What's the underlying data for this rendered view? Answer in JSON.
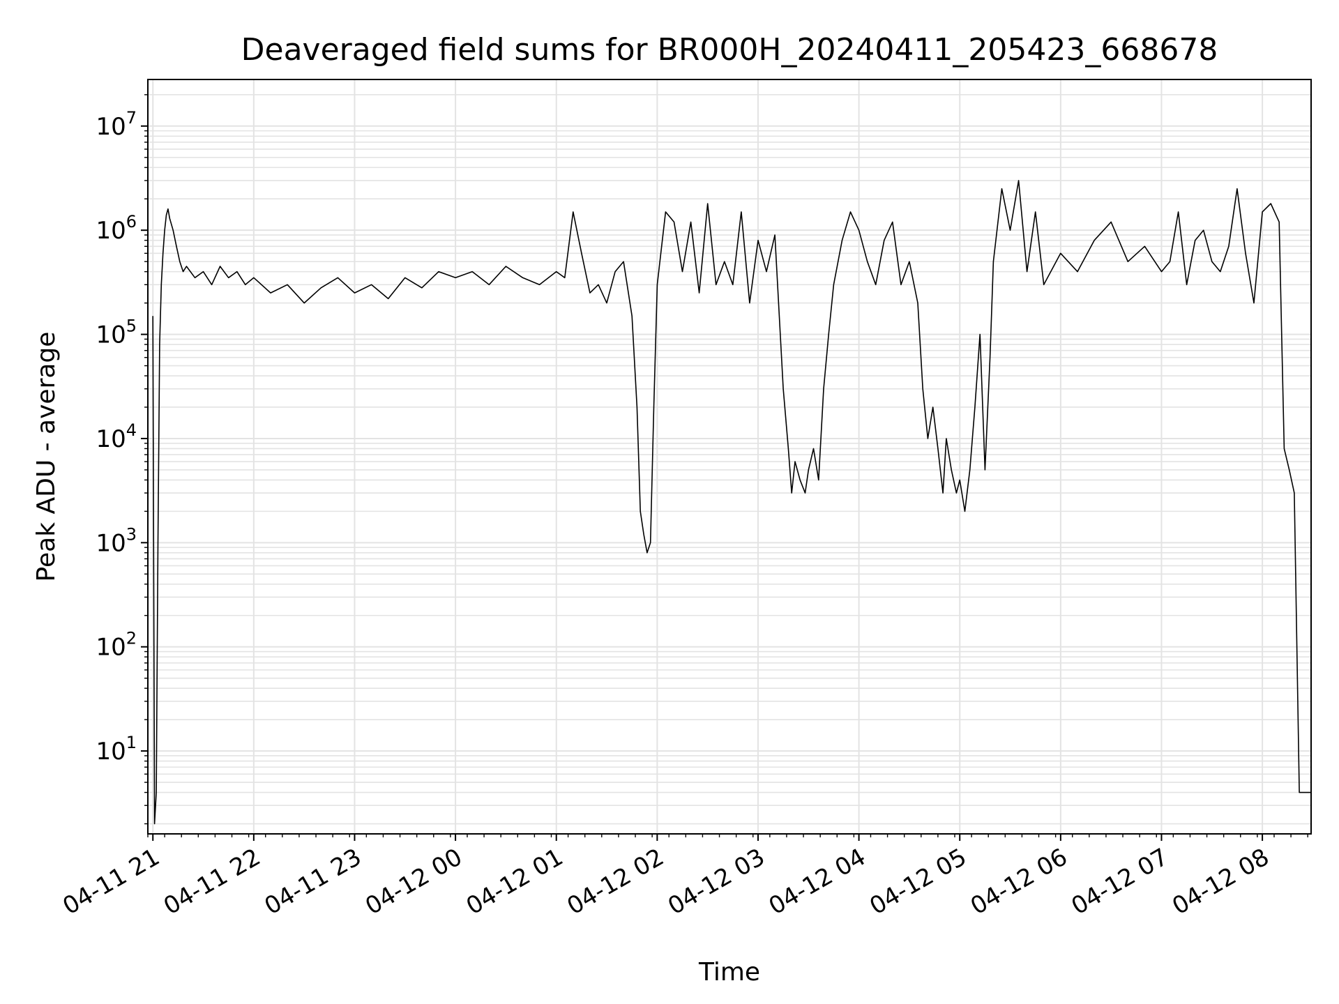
{
  "chart_data": {
    "type": "line",
    "title": "Deaveraged field sums for BR000H_20240411_205423_668678",
    "xlabel": "Time",
    "ylabel": "Peak ADU - average",
    "yscale": "log",
    "grid": "on",
    "legend": "none",
    "line_color": "#000000",
    "grid_color": "#e3e3e3",
    "xlim": [
      "2024-04-11 20:57",
      "2024-04-12 08:29"
    ],
    "ylim": [
      1.6,
      28000000
    ],
    "x_ticks": [
      {
        "t": "2024-04-11 21:00",
        "label": "04-11 21"
      },
      {
        "t": "2024-04-11 22:00",
        "label": "04-11 22"
      },
      {
        "t": "2024-04-11 23:00",
        "label": "04-11 23"
      },
      {
        "t": "2024-04-12 00:00",
        "label": "04-12 00"
      },
      {
        "t": "2024-04-12 01:00",
        "label": "04-12 01"
      },
      {
        "t": "2024-04-12 02:00",
        "label": "04-12 02"
      },
      {
        "t": "2024-04-12 03:00",
        "label": "04-12 03"
      },
      {
        "t": "2024-04-12 04:00",
        "label": "04-12 04"
      },
      {
        "t": "2024-04-12 05:00",
        "label": "04-12 05"
      },
      {
        "t": "2024-04-12 06:00",
        "label": "04-12 06"
      },
      {
        "t": "2024-04-12 07:00",
        "label": "04-12 07"
      },
      {
        "t": "2024-04-12 08:00",
        "label": "04-12 08"
      }
    ],
    "y_ticks": [
      {
        "value": 10,
        "base": "10",
        "exp": "1"
      },
      {
        "value": 100,
        "base": "10",
        "exp": "2"
      },
      {
        "value": 1000,
        "base": "10",
        "exp": "3"
      },
      {
        "value": 10000,
        "base": "10",
        "exp": "4"
      },
      {
        "value": 100000,
        "base": "10",
        "exp": "5"
      },
      {
        "value": 1000000,
        "base": "10",
        "exp": "6"
      },
      {
        "value": 10000000,
        "base": "10",
        "exp": "7"
      }
    ],
    "series": [
      {
        "x": [
          "2024-04-11 21:00",
          "2024-04-11 21:01",
          "2024-04-11 21:02",
          "2024-04-11 21:03",
          "2024-04-11 21:04",
          "2024-04-11 21:05",
          "2024-04-11 21:06",
          "2024-04-11 21:07",
          "2024-04-11 21:08",
          "2024-04-11 21:09",
          "2024-04-11 21:10",
          "2024-04-11 21:12",
          "2024-04-11 21:14",
          "2024-04-11 21:16",
          "2024-04-11 21:18",
          "2024-04-11 21:20",
          "2024-04-11 21:25",
          "2024-04-11 21:30",
          "2024-04-11 21:35",
          "2024-04-11 21:40",
          "2024-04-11 21:45",
          "2024-04-11 21:50",
          "2024-04-11 21:55",
          "2024-04-11 22:00",
          "2024-04-11 22:10",
          "2024-04-11 22:20",
          "2024-04-11 22:30",
          "2024-04-11 22:40",
          "2024-04-11 22:50",
          "2024-04-11 23:00",
          "2024-04-11 23:10",
          "2024-04-11 23:20",
          "2024-04-11 23:30",
          "2024-04-11 23:40",
          "2024-04-11 23:50",
          "2024-04-12 00:00",
          "2024-04-12 00:10",
          "2024-04-12 00:20",
          "2024-04-12 00:30",
          "2024-04-12 00:40",
          "2024-04-12 00:50",
          "2024-04-12 01:00",
          "2024-04-12 01:05",
          "2024-04-12 01:10",
          "2024-04-12 01:15",
          "2024-04-12 01:20",
          "2024-04-12 01:25",
          "2024-04-12 01:30",
          "2024-04-12 01:35",
          "2024-04-12 01:40",
          "2024-04-12 01:45",
          "2024-04-12 01:48",
          "2024-04-12 01:50",
          "2024-04-12 01:52",
          "2024-04-12 01:54",
          "2024-04-12 01:56",
          "2024-04-12 01:58",
          "2024-04-12 02:00",
          "2024-04-12 02:05",
          "2024-04-12 02:10",
          "2024-04-12 02:15",
          "2024-04-12 02:20",
          "2024-04-12 02:25",
          "2024-04-12 02:30",
          "2024-04-12 02:35",
          "2024-04-12 02:40",
          "2024-04-12 02:45",
          "2024-04-12 02:50",
          "2024-04-12 02:55",
          "2024-04-12 03:00",
          "2024-04-12 03:05",
          "2024-04-12 03:10",
          "2024-04-12 03:15",
          "2024-04-12 03:18",
          "2024-04-12 03:20",
          "2024-04-12 03:22",
          "2024-04-12 03:25",
          "2024-04-12 03:28",
          "2024-04-12 03:30",
          "2024-04-12 03:33",
          "2024-04-12 03:36",
          "2024-04-12 03:39",
          "2024-04-12 03:42",
          "2024-04-12 03:45",
          "2024-04-12 03:50",
          "2024-04-12 03:55",
          "2024-04-12 04:00",
          "2024-04-12 04:05",
          "2024-04-12 04:10",
          "2024-04-12 04:15",
          "2024-04-12 04:20",
          "2024-04-12 04:25",
          "2024-04-12 04:30",
          "2024-04-12 04:35",
          "2024-04-12 04:38",
          "2024-04-12 04:41",
          "2024-04-12 04:44",
          "2024-04-12 04:47",
          "2024-04-12 04:50",
          "2024-04-12 04:52",
          "2024-04-12 04:55",
          "2024-04-12 04:58",
          "2024-04-12 05:00",
          "2024-04-12 05:03",
          "2024-04-12 05:06",
          "2024-04-12 05:09",
          "2024-04-12 05:12",
          "2024-04-12 05:15",
          "2024-04-12 05:18",
          "2024-04-12 05:20",
          "2024-04-12 05:25",
          "2024-04-12 05:30",
          "2024-04-12 05:35",
          "2024-04-12 05:40",
          "2024-04-12 05:45",
          "2024-04-12 05:50",
          "2024-04-12 06:00",
          "2024-04-12 06:10",
          "2024-04-12 06:20",
          "2024-04-12 06:30",
          "2024-04-12 06:40",
          "2024-04-12 06:50",
          "2024-04-12 07:00",
          "2024-04-12 07:05",
          "2024-04-12 07:10",
          "2024-04-12 07:15",
          "2024-04-12 07:20",
          "2024-04-12 07:25",
          "2024-04-12 07:30",
          "2024-04-12 07:35",
          "2024-04-12 07:40",
          "2024-04-12 07:45",
          "2024-04-12 07:50",
          "2024-04-12 07:55",
          "2024-04-12 08:00",
          "2024-04-12 08:05",
          "2024-04-12 08:10",
          "2024-04-12 08:13",
          "2024-04-12 08:16",
          "2024-04-12 08:19",
          "2024-04-12 08:22",
          "2024-04-12 08:25",
          "2024-04-12 08:29"
        ],
        "y": [
          150000,
          2,
          4,
          1000,
          80000,
          300000,
          600000,
          1000000,
          1400000,
          1600000,
          1300000,
          1000000,
          700000,
          500000,
          400000,
          450000,
          350000,
          400000,
          300000,
          450000,
          350000,
          400000,
          300000,
          350000,
          250000,
          300000,
          200000,
          280000,
          350000,
          250000,
          300000,
          220000,
          350000,
          280000,
          400000,
          350000,
          400000,
          300000,
          450000,
          350000,
          300000,
          400000,
          350000,
          1500000,
          600000,
          250000,
          300000,
          200000,
          400000,
          500000,
          150000,
          20000,
          2000,
          1200,
          800,
          1000,
          20000,
          300000,
          1500000,
          1200000,
          400000,
          1200000,
          250000,
          1800000,
          300000,
          500000,
          300000,
          1500000,
          200000,
          800000,
          400000,
          900000,
          30000,
          8000,
          3000,
          6000,
          4000,
          3000,
          5000,
          8000,
          4000,
          30000,
          100000,
          300000,
          800000,
          1500000,
          1000000,
          500000,
          300000,
          800000,
          1200000,
          300000,
          500000,
          200000,
          30000,
          10000,
          20000,
          8000,
          3000,
          10000,
          5000,
          3000,
          4000,
          2000,
          5000,
          20000,
          100000,
          5000,
          60000,
          500000,
          2500000,
          1000000,
          3000000,
          400000,
          1500000,
          300000,
          600000,
          400000,
          800000,
          1200000,
          500000,
          700000,
          400000,
          500000,
          1500000,
          300000,
          800000,
          1000000,
          500000,
          400000,
          700000,
          2500000,
          600000,
          200000,
          1500000,
          1800000,
          1200000,
          8000,
          5000,
          3000,
          4,
          4,
          4
        ]
      }
    ]
  }
}
